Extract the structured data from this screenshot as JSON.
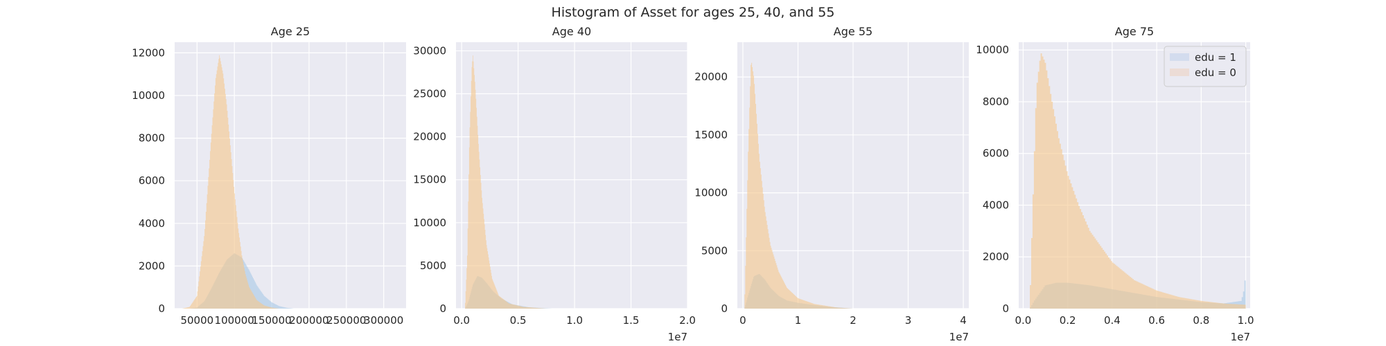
{
  "title": "Histogram of Asset for ages 25, 40, and 55",
  "colors": {
    "panel_bg": "#eaeaf2",
    "grid": "#ffffff",
    "edu1": "#a6c8e6",
    "edu0": "#f5c78a",
    "edu1_legend": "#d3dcee",
    "edu0_legend": "#ecdcd6"
  },
  "legend": {
    "placement": "top-right",
    "items": [
      "edu = 1",
      "edu = 0"
    ]
  },
  "chart_data": [
    {
      "type": "area",
      "title": "Age 25",
      "xlim": [
        20000,
        330000
      ],
      "ylim": [
        0,
        12500
      ],
      "xticks": [
        50000,
        100000,
        150000,
        200000,
        250000,
        300000
      ],
      "xtick_labels": [
        "50000",
        "100000",
        "150000",
        "200000",
        "250000",
        "300000"
      ],
      "yticks": [
        0,
        2000,
        4000,
        6000,
        8000,
        10000,
        12000
      ],
      "ytick_labels": [
        "0",
        "2000",
        "4000",
        "6000",
        "8000",
        "10000",
        "12000"
      ],
      "offset_text": "",
      "series": [
        {
          "name": "edu = 1",
          "x": [
            40000,
            50000,
            60000,
            70000,
            80000,
            90000,
            100000,
            110000,
            120000,
            130000,
            140000,
            150000,
            160000,
            170000,
            180000
          ],
          "y": [
            0,
            50,
            350,
            1000,
            1700,
            2300,
            2600,
            2400,
            1800,
            1100,
            600,
            300,
            120,
            40,
            0
          ]
        },
        {
          "name": "edu = 0",
          "x": [
            30000,
            40000,
            50000,
            60000,
            70000,
            75000,
            80000,
            85000,
            90000,
            95000,
            100000,
            105000,
            110000,
            115000,
            120000,
            130000,
            140000,
            150000,
            160000
          ],
          "y": [
            0,
            80,
            600,
            3500,
            8500,
            10800,
            11900,
            11000,
            9500,
            7500,
            5500,
            3800,
            2500,
            1600,
            1000,
            400,
            150,
            50,
            0
          ]
        }
      ]
    },
    {
      "type": "area",
      "title": "Age 40",
      "xlim": [
        -500000,
        20000000
      ],
      "ylim": [
        0,
        31000
      ],
      "xticks": [
        0,
        5000000,
        10000000,
        15000000,
        20000000
      ],
      "xtick_labels": [
        "0.0",
        "0.5",
        "1.0",
        "1.5",
        "2.0"
      ],
      "yticks": [
        0,
        5000,
        10000,
        15000,
        20000,
        25000,
        30000
      ],
      "ytick_labels": [
        "0",
        "5000",
        "10000",
        "15000",
        "20000",
        "25000",
        "30000"
      ],
      "offset_text": "1e7",
      "series": [
        {
          "name": "edu = 1",
          "x": [
            300000,
            600000,
            1000000,
            1400000,
            1800000,
            2200000,
            2800000,
            3500000,
            4500000,
            6000000,
            8000000
          ],
          "y": [
            0,
            800,
            2800,
            3800,
            3600,
            3000,
            2000,
            1200,
            500,
            150,
            0
          ]
        },
        {
          "name": "edu = 0",
          "x": [
            300000,
            500000,
            700000,
            900000,
            1000000,
            1200000,
            1500000,
            1800000,
            2200000,
            2700000,
            3300000,
            4200000,
            5500000,
            7500000
          ],
          "y": [
            0,
            6000,
            20000,
            28000,
            29500,
            26000,
            19000,
            13000,
            7500,
            3500,
            1500,
            600,
            200,
            0
          ]
        }
      ]
    },
    {
      "type": "area",
      "title": "Age 55",
      "xlim": [
        -1000000,
        41000000
      ],
      "ylim": [
        0,
        23000
      ],
      "xticks": [
        0,
        10000000,
        20000000,
        30000000,
        40000000
      ],
      "xtick_labels": [
        "0",
        "1",
        "2",
        "3",
        "4"
      ],
      "yticks": [
        0,
        5000,
        10000,
        15000,
        20000
      ],
      "ytick_labels": [
        "0",
        "5000",
        "10000",
        "15000",
        "20000"
      ],
      "offset_text": "1e7",
      "series": [
        {
          "name": "edu = 1",
          "x": [
            300000,
            1000000,
            2000000,
            3000000,
            4000000,
            5000000,
            6500000,
            8000000,
            10000000,
            13000000,
            16000000,
            20000000
          ],
          "y": [
            0,
            1200,
            2800,
            3000,
            2500,
            1800,
            1100,
            700,
            500,
            300,
            150,
            0
          ]
        },
        {
          "name": "edu = 0",
          "x": [
            300000,
            1000000,
            1500000,
            2000000,
            2500000,
            3000000,
            4000000,
            5000000,
            6500000,
            8000000,
            10000000,
            13000000,
            17000000,
            20000000
          ],
          "y": [
            0,
            14000,
            21500,
            20000,
            16500,
            13000,
            8500,
            5500,
            3200,
            1800,
            900,
            400,
            100,
            0
          ]
        }
      ]
    },
    {
      "type": "area",
      "title": "Age 75",
      "xlim": [
        -200000,
        10200000
      ],
      "ylim": [
        0,
        10300
      ],
      "xticks": [
        0,
        2000000,
        4000000,
        6000000,
        8000000,
        10000000
      ],
      "xtick_labels": [
        "0.0",
        "0.2",
        "0.4",
        "0.6",
        "0.8",
        "1.0"
      ],
      "yticks": [
        0,
        2000,
        4000,
        6000,
        8000,
        10000
      ],
      "ytick_labels": [
        "0",
        "2000",
        "4000",
        "6000",
        "8000",
        "10000"
      ],
      "offset_text": "1e7",
      "series": [
        {
          "name": "edu = 1",
          "x": [
            300000,
            500000,
            1000000,
            1500000,
            2000000,
            2500000,
            3000000,
            4000000,
            5000000,
            6000000,
            7000000,
            8000000,
            9000000,
            9800000,
            9900000,
            10000000
          ],
          "y": [
            0,
            300,
            900,
            1000,
            1000,
            950,
            900,
            750,
            600,
            450,
            350,
            250,
            200,
            300,
            600,
            1300
          ]
        },
        {
          "name": "edu = 0",
          "x": [
            300000,
            400000,
            600000,
            800000,
            1000000,
            1300000,
            1600000,
            2000000,
            2500000,
            3000000,
            4000000,
            5000000,
            6000000,
            7000000,
            8000000,
            9000000,
            10000000
          ],
          "y": [
            0,
            3000,
            8500,
            9900,
            9500,
            8000,
            6600,
            5200,
            4000,
            3000,
            1800,
            1100,
            700,
            450,
            300,
            200,
            150
          ]
        }
      ]
    }
  ]
}
